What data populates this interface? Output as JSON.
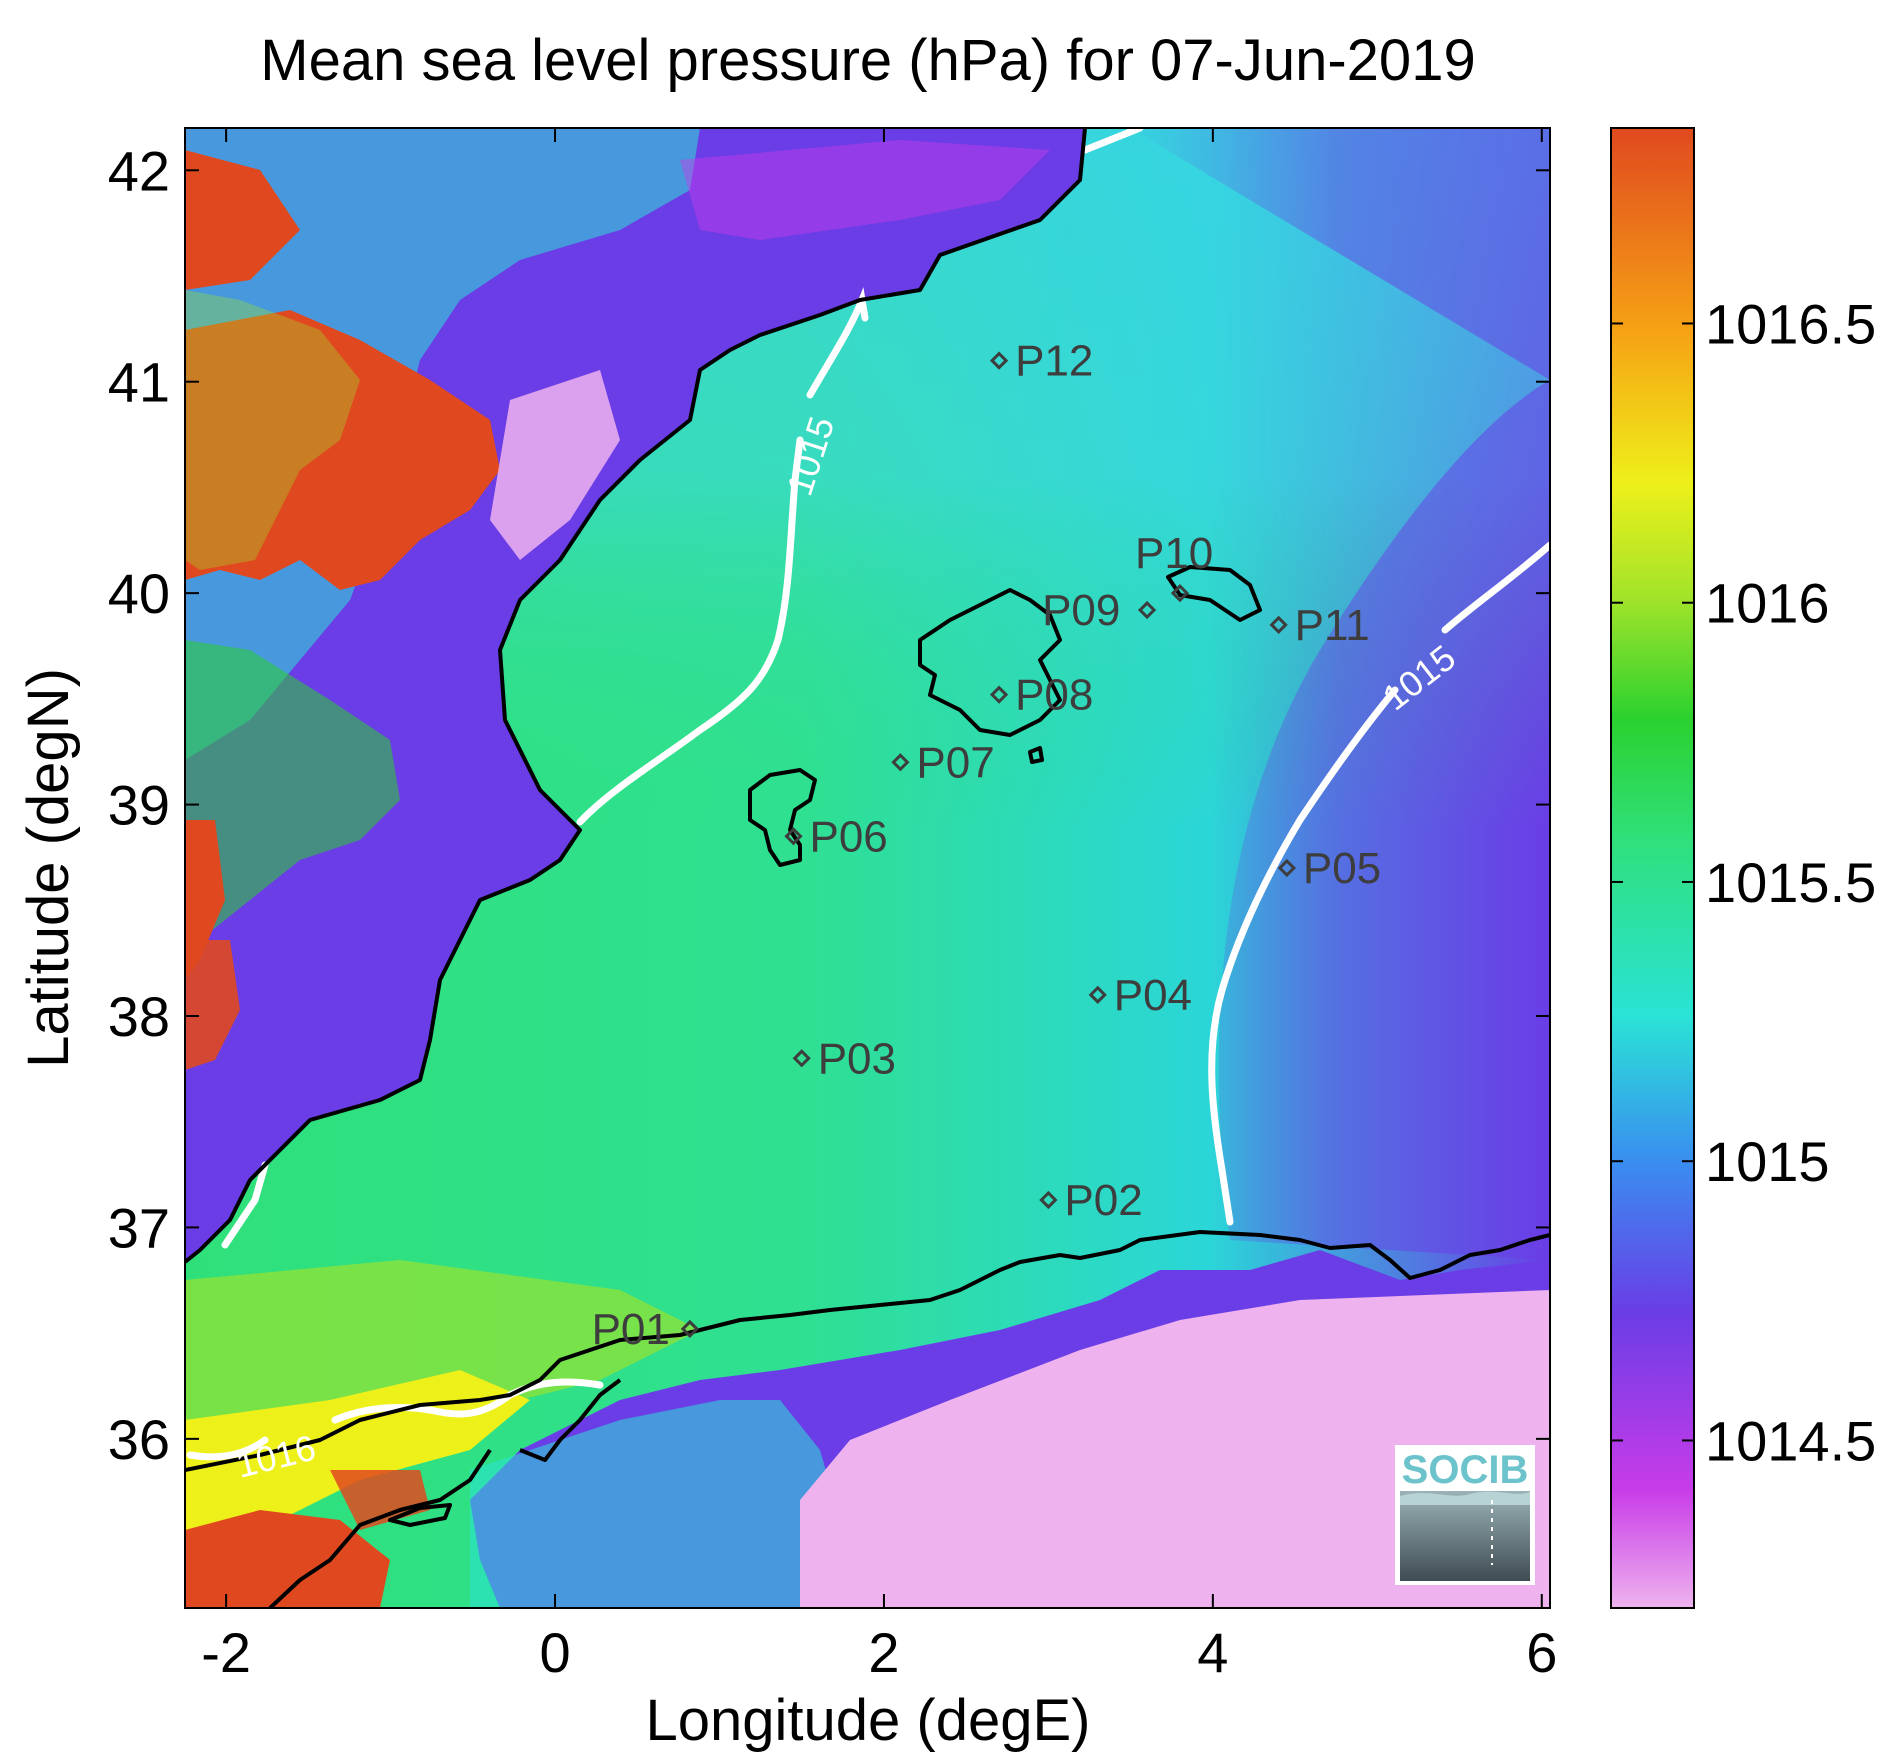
{
  "title": "Mean sea level pressure (hPa) for 07-Jun-2019",
  "axes": {
    "xlabel": "Longitude (degE)",
    "ylabel": "Latitude (degN)",
    "xlim": [
      -2.25,
      6.05
    ],
    "ylim": [
      35.2,
      42.2
    ],
    "xticks": [
      {
        "value": -2,
        "label": "-2"
      },
      {
        "value": 0,
        "label": "0"
      },
      {
        "value": 2,
        "label": "2"
      },
      {
        "value": 4,
        "label": "4"
      },
      {
        "value": 6,
        "label": "6"
      }
    ],
    "yticks": [
      {
        "value": 36,
        "label": "36"
      },
      {
        "value": 37,
        "label": "37"
      },
      {
        "value": 38,
        "label": "38"
      },
      {
        "value": 39,
        "label": "39"
      },
      {
        "value": 40,
        "label": "40"
      },
      {
        "value": 41,
        "label": "41"
      },
      {
        "value": 42,
        "label": "42"
      }
    ]
  },
  "colorbar": {
    "range": [
      1014.2,
      1016.85
    ],
    "ticks": [
      {
        "value": 1014.5,
        "label": "1014.5"
      },
      {
        "value": 1015,
        "label": "1015"
      },
      {
        "value": 1015.5,
        "label": "1015.5"
      },
      {
        "value": 1016,
        "label": "1016"
      },
      {
        "value": 1016.5,
        "label": "1016.5"
      }
    ],
    "colors": [
      "#eeb3ee",
      "#c83ce8",
      "#6a3de6",
      "#3a8cf0",
      "#2ae3d6",
      "#2fe07a",
      "#2ad12f",
      "#9fe32a",
      "#eef01a",
      "#f6a414",
      "#e0491f"
    ]
  },
  "contour_labels": [
    {
      "text": "1015"
    },
    {
      "text": "1015"
    },
    {
      "text": "1016"
    }
  ],
  "stations": [
    {
      "name": "P01",
      "lon": 0.82,
      "lat": 36.52
    },
    {
      "name": "P02",
      "lon": 3.0,
      "lat": 37.13
    },
    {
      "name": "P03",
      "lon": 1.5,
      "lat": 37.8
    },
    {
      "name": "P04",
      "lon": 3.3,
      "lat": 38.1
    },
    {
      "name": "P05",
      "lon": 4.45,
      "lat": 38.7
    },
    {
      "name": "P06",
      "lon": 1.45,
      "lat": 38.85
    },
    {
      "name": "P07",
      "lon": 2.1,
      "lat": 39.2
    },
    {
      "name": "P08",
      "lon": 2.7,
      "lat": 39.52
    },
    {
      "name": "P09",
      "lon": 3.6,
      "lat": 39.92
    },
    {
      "name": "P10",
      "lon": 3.8,
      "lat": 40.0
    },
    {
      "name": "P11",
      "lon": 4.4,
      "lat": 39.85
    },
    {
      "name": "P12",
      "lon": 2.7,
      "lat": 41.1
    }
  ],
  "logo": {
    "text": "SOCIB"
  }
}
